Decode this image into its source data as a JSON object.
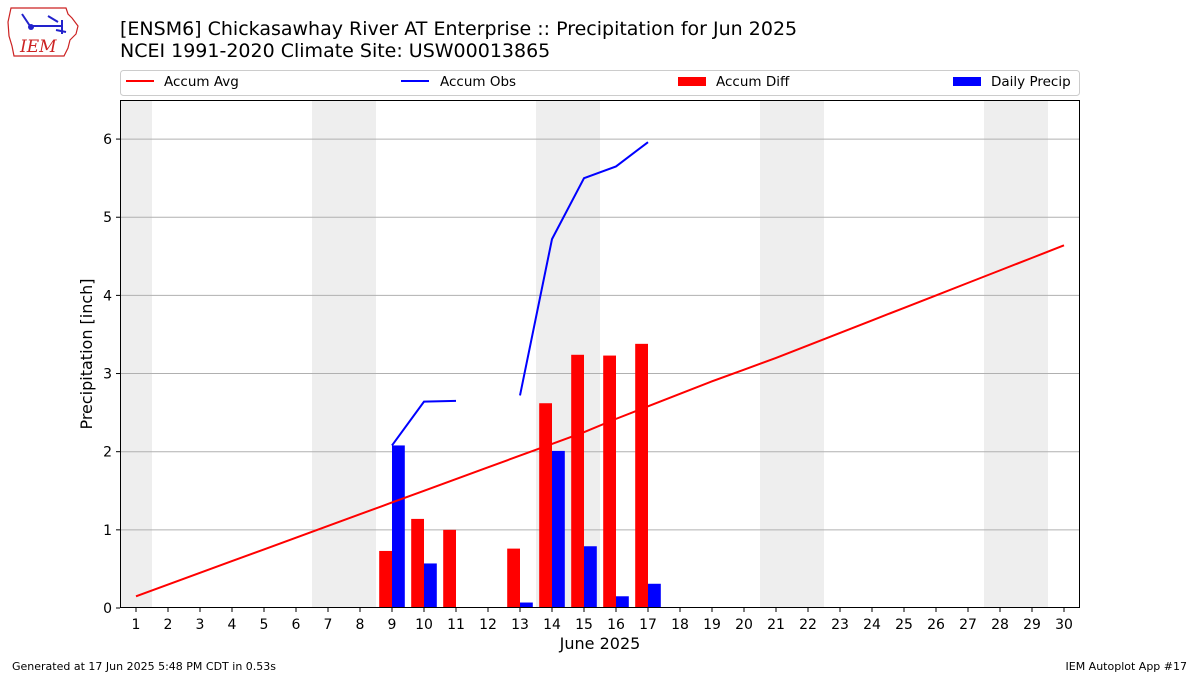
{
  "title_line1": "[ENSM6] Chickasawhay River  AT Enterprise :: Precipitation for Jun 2025",
  "title_line2": "NCEI 1991-2020 Climate Site: USW00013865",
  "logo_text": "IEM",
  "footer_left": "Generated at 17 Jun 2025 5:48 PM CDT in 0.53s",
  "footer_right": "IEM Autoplot App #17",
  "colors": {
    "accum_avg": "#ff0000",
    "accum_obs": "#0000ff",
    "accum_diff": "#ff0000",
    "daily_precip": "#0000ff",
    "weekend_shade": "#eeeeee",
    "grid": "#b0b0b0"
  },
  "chart_data": {
    "type": "bar",
    "xlabel": "June 2025",
    "ylabel": "Precipitation [inch]",
    "xlim": [
      0.5,
      30.5
    ],
    "ylim": [
      0,
      6.5
    ],
    "yticks": [
      0,
      1,
      2,
      3,
      4,
      5,
      6
    ],
    "grid": "horizontal",
    "legend_position": "top",
    "weekend_days": [
      1,
      7,
      8,
      14,
      15,
      21,
      22,
      28,
      29
    ],
    "days": [
      1,
      2,
      3,
      4,
      5,
      6,
      7,
      8,
      9,
      10,
      11,
      12,
      13,
      14,
      15,
      16,
      17,
      18,
      19,
      20,
      21,
      22,
      23,
      24,
      25,
      26,
      27,
      28,
      29,
      30
    ],
    "series": [
      {
        "name": "Accum Avg",
        "type": "line",
        "values": [
          0.15,
          0.3,
          0.45,
          0.6,
          0.75,
          0.9,
          1.05,
          1.2,
          1.35,
          1.5,
          1.65,
          1.8,
          1.95,
          2.1,
          2.25,
          2.42,
          2.58,
          2.74,
          2.9,
          3.05,
          3.2,
          3.36,
          3.52,
          3.68,
          3.84,
          4.0,
          4.16,
          4.32,
          4.48,
          4.64
        ]
      },
      {
        "name": "Accum Obs",
        "type": "line",
        "segments": [
          {
            "x": [
              9,
              10,
              11
            ],
            "y": [
              2.08,
              2.64,
              2.65
            ]
          },
          {
            "x": [
              13,
              14,
              15,
              16,
              17
            ],
            "y": [
              2.72,
              4.72,
              5.5,
              5.65,
              5.96
            ]
          }
        ]
      },
      {
        "name": "Accum Diff",
        "type": "bar",
        "x": [
          9,
          10,
          11,
          13,
          14,
          15,
          16,
          17
        ],
        "values": [
          0.73,
          1.14,
          1.0,
          0.76,
          2.62,
          3.24,
          3.23,
          3.38
        ]
      },
      {
        "name": "Daily Precip",
        "type": "bar",
        "x": [
          9,
          10,
          11,
          13,
          14,
          15,
          16,
          17
        ],
        "values": [
          2.08,
          0.57,
          0.01,
          0.07,
          2.01,
          0.79,
          0.15,
          0.31
        ]
      }
    ]
  }
}
